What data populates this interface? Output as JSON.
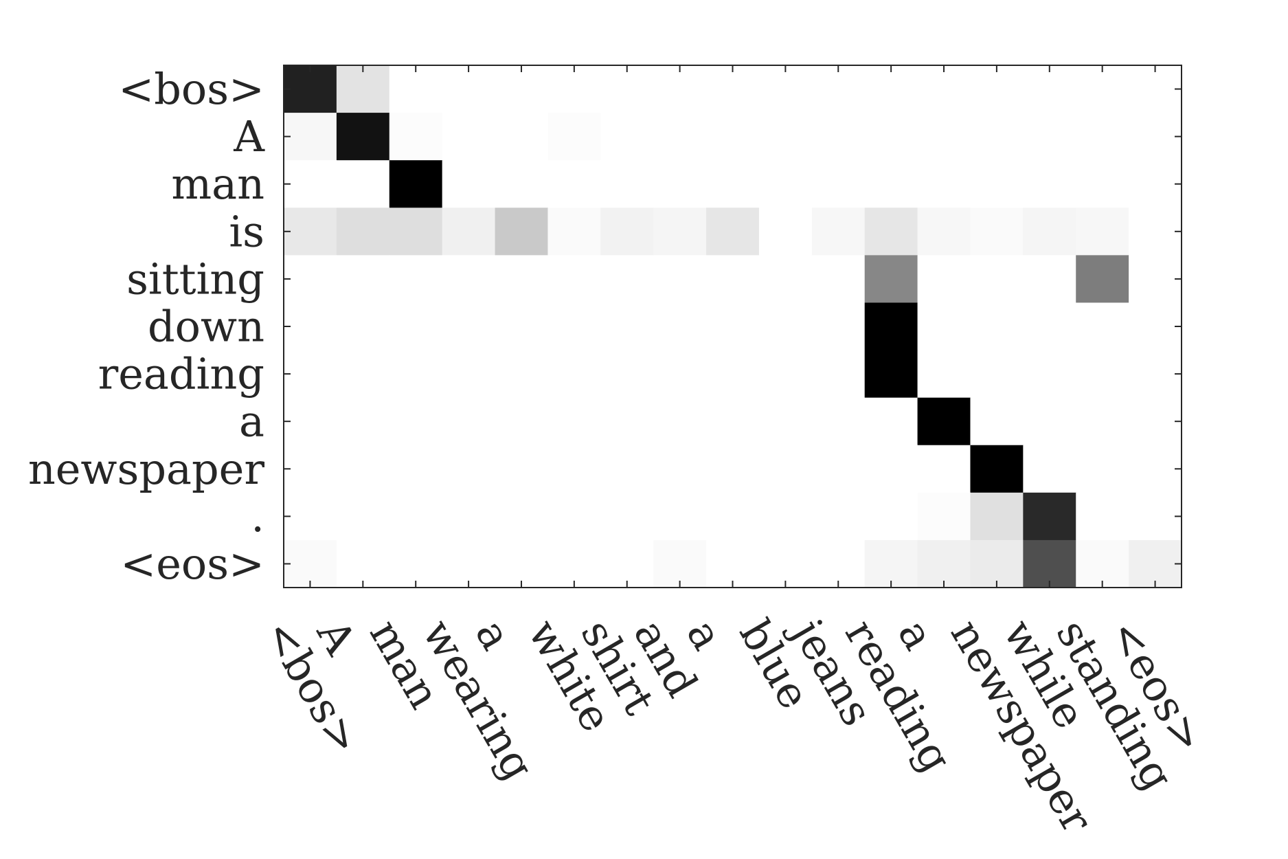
{
  "chart_data": {
    "type": "heatmap",
    "title": "",
    "xlabel": "",
    "ylabel": "",
    "colormap": "gray-reversed",
    "value_range": [
      0,
      1
    ],
    "grid": false,
    "x_categories": [
      "<bos>",
      "A",
      "man",
      "wearing",
      "a",
      "white",
      "shirt",
      "and",
      "a",
      "blue",
      "jeans",
      "reading",
      "a",
      "newspaper",
      "while",
      "standing",
      "<eos>"
    ],
    "y_categories": [
      "<bos>",
      "A",
      "man",
      "is",
      "sitting",
      "down",
      "reading",
      "a",
      "newspaper",
      ".",
      "<eos>"
    ],
    "values": [
      [
        0.87,
        0.11,
        0,
        0,
        0,
        0,
        0,
        0,
        0,
        0,
        0,
        0,
        0,
        0,
        0,
        0,
        0
      ],
      [
        0.03,
        0.93,
        0.01,
        0,
        0,
        0.01,
        0,
        0,
        0,
        0,
        0,
        0,
        0,
        0,
        0,
        0,
        0
      ],
      [
        0,
        0,
        1.0,
        0,
        0,
        0,
        0,
        0,
        0,
        0,
        0,
        0,
        0,
        0,
        0,
        0,
        0
      ],
      [
        0.09,
        0.13,
        0.13,
        0.06,
        0.21,
        0.02,
        0.05,
        0.04,
        0.1,
        0,
        0.03,
        0.1,
        0.03,
        0.02,
        0.04,
        0.03,
        0
      ],
      [
        0,
        0,
        0,
        0,
        0,
        0,
        0,
        0,
        0,
        0,
        0,
        0.47,
        0,
        0,
        0,
        0.51,
        0
      ],
      [
        0,
        0,
        0,
        0,
        0,
        0,
        0,
        0,
        0,
        0,
        0,
        1.0,
        0,
        0,
        0,
        0,
        0
      ],
      [
        0,
        0,
        0,
        0,
        0,
        0,
        0,
        0,
        0,
        0,
        0,
        1.0,
        0,
        0,
        0,
        0,
        0
      ],
      [
        0,
        0,
        0,
        0,
        0,
        0,
        0,
        0,
        0,
        0,
        0,
        0,
        1.0,
        0,
        0,
        0,
        0
      ],
      [
        0,
        0,
        0,
        0,
        0,
        0,
        0,
        0,
        0,
        0,
        0,
        0,
        0,
        1.0,
        0,
        0,
        0
      ],
      [
        0,
        0,
        0,
        0,
        0,
        0,
        0,
        0,
        0,
        0,
        0,
        0,
        0.01,
        0.12,
        0.84,
        0,
        0
      ],
      [
        0.02,
        0,
        0,
        0,
        0,
        0,
        0,
        0.02,
        0,
        0,
        0,
        0.04,
        0.06,
        0.08,
        0.69,
        0.02,
        0.06
      ]
    ]
  }
}
